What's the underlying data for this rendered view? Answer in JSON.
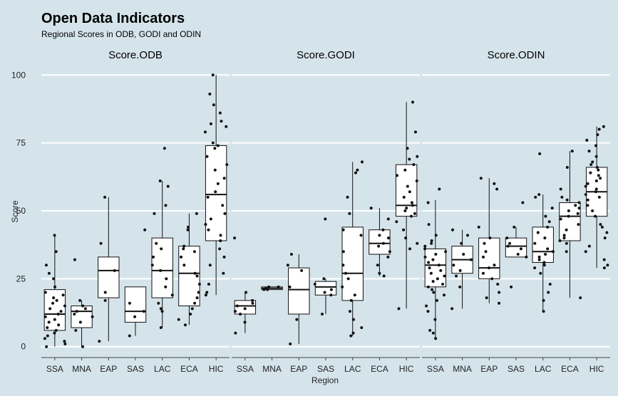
{
  "chart_data": {
    "type": "boxplot",
    "title": "Open Data Indicators",
    "subtitle": "Regional Scores in ODB, GODI and ODIN",
    "xlabel": "Region",
    "ylabel": "Score",
    "ylim": [
      -4,
      104
    ],
    "yticks": [
      0,
      25,
      50,
      75,
      100
    ],
    "categories": [
      "SSA",
      "MNA",
      "EAP",
      "SAS",
      "LAC",
      "ECA",
      "HIC"
    ],
    "background_color": "#d5e4eb",
    "grid": "horizontal major lines, white",
    "facets": [
      {
        "name": "Score.ODB",
        "boxes": [
          {
            "category": "SSA",
            "q1": 6,
            "median": 12,
            "q3": 21,
            "whisker_low": 0,
            "whisker_high": 41,
            "points": [
              41,
              35,
              30,
              27,
              25,
              22,
              20,
              19,
              17,
              16,
              14,
              13,
              12,
              11,
              10,
              9,
              8,
              7,
              6,
              5,
              4,
              3,
              2,
              1,
              0,
              18,
              15
            ]
          },
          {
            "category": "MNA",
            "q1": 7,
            "median": 13,
            "q3": 15,
            "whisker_low": 0,
            "whisker_high": 17,
            "points": [
              32,
              17,
              15,
              14,
              13,
              12,
              11,
              9,
              6,
              0
            ]
          },
          {
            "category": "EAP",
            "q1": 18,
            "median": 28,
            "q3": 33,
            "whisker_low": 2,
            "whisker_high": 55,
            "points": [
              55,
              38,
              28,
              20,
              17,
              2
            ]
          },
          {
            "category": "SAS",
            "q1": 9,
            "median": 13,
            "q3": 22,
            "whisker_low": 4,
            "whisker_high": 22,
            "points": [
              43,
              16,
              13,
              11,
              4
            ]
          },
          {
            "category": "LAC",
            "q1": 18,
            "median": 28,
            "q3": 40,
            "whisker_low": 7,
            "whisker_high": 61,
            "points": [
              73,
              61,
              59,
              52,
              49,
              38,
              36,
              33,
              30,
              28,
              25,
              22,
              19,
              16,
              14,
              13,
              7
            ]
          },
          {
            "category": "ECA",
            "q1": 15,
            "median": 27,
            "q3": 37,
            "whisker_low": 8,
            "whisker_high": 49,
            "points": [
              49,
              44,
              43,
              37,
              36,
              35,
              33,
              30,
              27,
              26,
              23,
              20,
              18,
              16,
              14,
              12,
              10,
              8
            ]
          },
          {
            "category": "HIC",
            "q1": 39,
            "median": 56,
            "q3": 74,
            "whisker_low": 19,
            "whisker_high": 100,
            "points": [
              100,
              93,
              89,
              86,
              83,
              82,
              81,
              79,
              75,
              74,
              73,
              70,
              67,
              65,
              62,
              60,
              57,
              55,
              52,
              49,
              47,
              45,
              43,
              41,
              39,
              36,
              33,
              30,
              27,
              23,
              19,
              20
            ]
          }
        ]
      },
      {
        "name": "Score.GODI",
        "boxes": [
          {
            "category": "SSA",
            "q1": 12,
            "median": 15,
            "q3": 17,
            "whisker_low": 5,
            "whisker_high": 20,
            "points": [
              40,
              20,
              17,
              16,
              15,
              14,
              13,
              12,
              9,
              5
            ]
          },
          {
            "category": "MNA",
            "q1": 21,
            "median": 21.5,
            "q3": 22,
            "whisker_low": 21,
            "whisker_high": 22,
            "points": [
              22,
              21.5,
              21,
              22,
              21
            ]
          },
          {
            "category": "EAP",
            "q1": 12,
            "median": 21,
            "q3": 29,
            "whisker_low": 1,
            "whisker_high": 34,
            "points": [
              34,
              30,
              28,
              22,
              10,
              1
            ]
          },
          {
            "category": "SAS",
            "q1": 19,
            "median": 22,
            "q3": 24,
            "whisker_low": 12,
            "whisker_high": 25,
            "points": [
              47,
              25,
              23,
              21,
              20,
              19,
              12
            ]
          },
          {
            "category": "LAC",
            "q1": 17,
            "median": 27,
            "q3": 44,
            "whisker_low": 4,
            "whisker_high": 68,
            "points": [
              68,
              65,
              64,
              55,
              49,
              43,
              41,
              35,
              30,
              27,
              25,
              22,
              19,
              17,
              13,
              10,
              7,
              5,
              4
            ]
          },
          {
            "category": "ECA",
            "q1": 34,
            "median": 38,
            "q3": 43,
            "whisker_low": 26,
            "whisker_high": 51,
            "points": [
              51,
              47,
              43,
              41,
              40,
              38,
              37,
              35,
              33,
              30,
              27,
              26
            ]
          },
          {
            "category": "HIC",
            "q1": 48,
            "median": 52,
            "q3": 67,
            "whisker_low": 14,
            "whisker_high": 90,
            "points": [
              90,
              79,
              73,
              70,
              69,
              67,
              65,
              63,
              61,
              59,
              57,
              55,
              53,
              52,
              51,
              50,
              49,
              48,
              46,
              43,
              40,
              38,
              36,
              14
            ]
          }
        ]
      },
      {
        "name": "Score.ODIN",
        "boxes": [
          {
            "category": "SSA",
            "q1": 22,
            "median": 30,
            "q3": 36,
            "whisker_low": 3,
            "whisker_high": 54,
            "points": [
              58,
              53,
              45,
              41,
              38,
              36,
              35,
              34,
              33,
              32,
              31,
              30,
              29,
              28,
              27,
              26,
              25,
              24,
              23,
              22,
              21,
              20,
              19,
              17,
              15,
              13,
              10,
              6,
              5,
              3,
              39,
              37
            ]
          },
          {
            "category": "MNA",
            "q1": 27,
            "median": 32,
            "q3": 37,
            "whisker_low": 14,
            "whisker_high": 43,
            "points": [
              43,
              41,
              38,
              34,
              32,
              30,
              28,
              26,
              22,
              14
            ]
          },
          {
            "category": "EAP",
            "q1": 25,
            "median": 29,
            "q3": 40,
            "whisker_low": 16,
            "whisker_high": 62,
            "points": [
              62,
              60,
              58,
              44,
              40,
              38,
              35,
              33,
              30,
              29,
              27,
              25,
              23,
              20,
              18,
              16
            ]
          },
          {
            "category": "SAS",
            "q1": 33,
            "median": 37,
            "q3": 40,
            "whisker_low": 33,
            "whisker_high": 44,
            "points": [
              53,
              44,
              40,
              38,
              37,
              36,
              34,
              33,
              22
            ]
          },
          {
            "category": "LAC",
            "q1": 31,
            "median": 35,
            "q3": 44,
            "whisker_low": 13,
            "whisker_high": 56,
            "points": [
              71,
              56,
              55,
              51,
              48,
              46,
              44,
              42,
              40,
              38,
              36,
              35,
              34,
              33,
              32,
              31,
              30,
              29,
              27,
              23,
              20,
              17,
              13
            ]
          },
          {
            "category": "ECA",
            "q1": 39,
            "median": 48,
            "q3": 53,
            "whisker_low": 18,
            "whisker_high": 72,
            "points": [
              72,
              66,
              58,
              55,
              54,
              53,
              52,
              51,
              50,
              49,
              48,
              47,
              45,
              43,
              41,
              40,
              39,
              38,
              35,
              18
            ]
          },
          {
            "category": "HIC",
            "q1": 48,
            "median": 57,
            "q3": 66,
            "whisker_low": 29,
            "whisker_high": 81,
            "points": [
              81,
              80,
              78,
              76,
              74,
              72,
              70,
              68,
              67,
              66,
              65,
              64,
              63,
              62,
              61,
              60,
              59,
              58,
              57,
              56,
              55,
              54,
              52,
              50,
              48,
              45,
              42,
              40,
              37,
              35,
              32,
              30,
              29,
              44
            ]
          }
        ]
      }
    ]
  }
}
